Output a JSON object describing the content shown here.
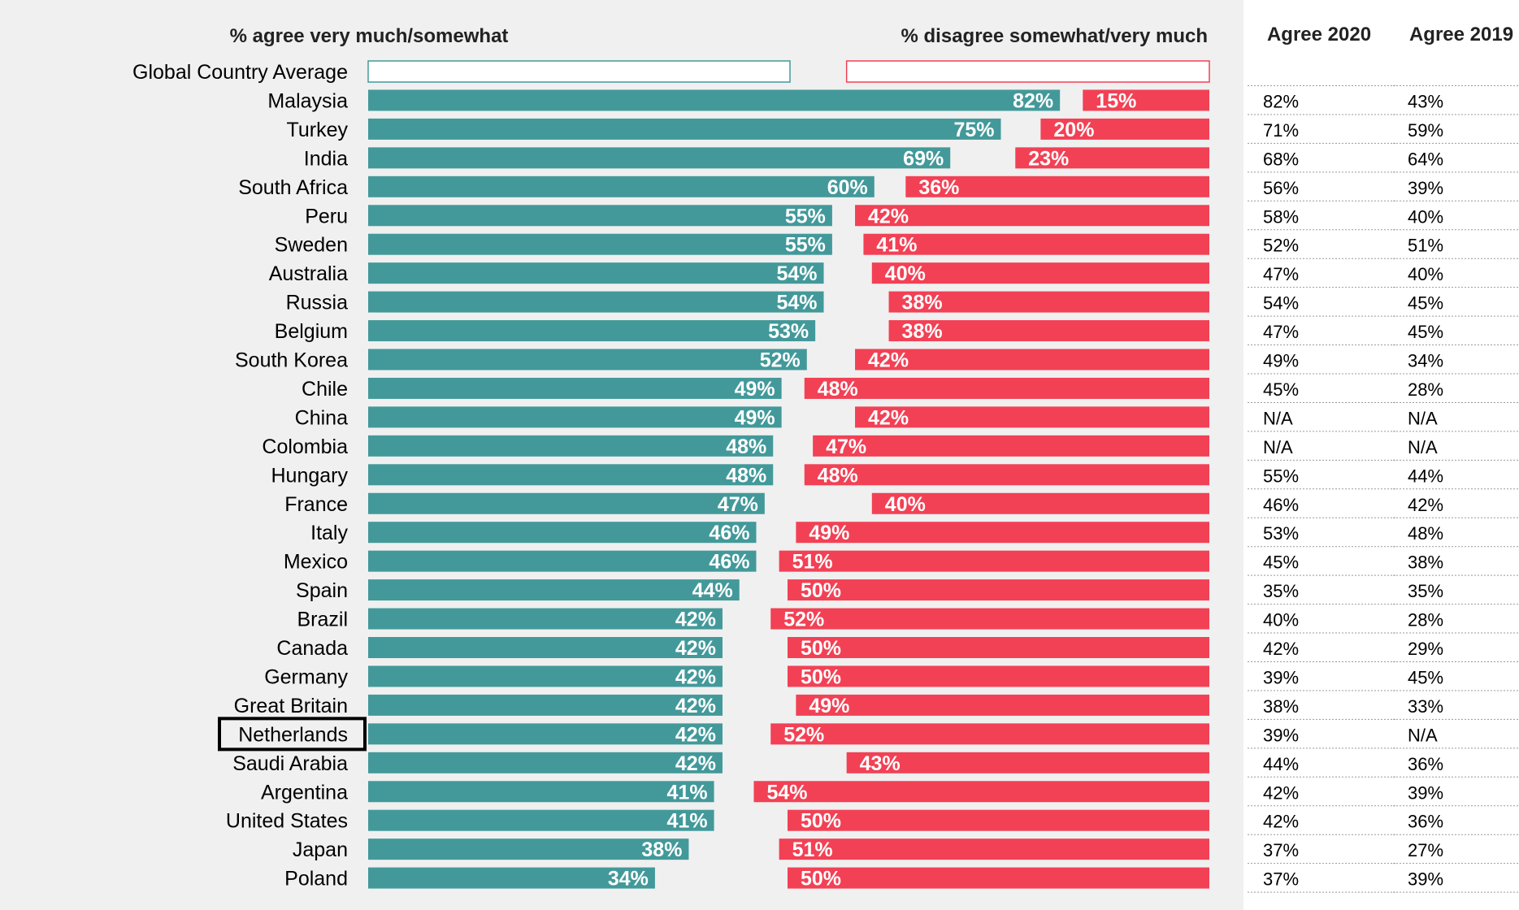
{
  "headers": {
    "agree": "% agree very much/somewhat",
    "disagree": "% disagree somewhat/very much",
    "col_2020": "Agree 2020",
    "col_2019": "Agree 2019"
  },
  "colors": {
    "agree": "#43999a",
    "disagree": "#f24155",
    "average_agree_text": "#43999a",
    "average_disagree_text": "#f24155",
    "panel_bg": "#f0f0f0"
  },
  "highlighted_country": "Netherlands",
  "chart_data": {
    "type": "bar",
    "orientation": "horizontal-diverging",
    "categories": [
      "Global Country Average",
      "Malaysia",
      "Turkey",
      "India",
      "South Africa",
      "Peru",
      "Sweden",
      "Australia",
      "Russia",
      "Belgium",
      "South Korea",
      "Chile",
      "China",
      "Colombia",
      "Hungary",
      "France",
      "Italy",
      "Mexico",
      "Spain",
      "Brazil",
      "Canada",
      "Germany",
      "Great Britain",
      "Netherlands",
      "Saudi Arabia",
      "Argentina",
      "United States",
      "Japan",
      "Poland"
    ],
    "series": [
      {
        "name": "% agree very much/somewhat",
        "values": [
          50,
          82,
          75,
          69,
          60,
          55,
          55,
          54,
          54,
          53,
          52,
          49,
          49,
          48,
          48,
          47,
          46,
          46,
          44,
          42,
          42,
          42,
          42,
          42,
          42,
          41,
          41,
          38,
          34
        ]
      },
      {
        "name": "% disagree somewhat/very much",
        "values": [
          43,
          15,
          20,
          23,
          36,
          42,
          41,
          40,
          38,
          38,
          42,
          48,
          42,
          47,
          48,
          40,
          49,
          51,
          50,
          52,
          50,
          50,
          49,
          52,
          43,
          54,
          50,
          51,
          50
        ]
      }
    ],
    "value_labels_agree": [
      "50%",
      "82%",
      "75%",
      "69%",
      "60%",
      "55%",
      "55%",
      "54%",
      "54%",
      "53%",
      "52%",
      "49%",
      "49%",
      "48%",
      "48%",
      "47%",
      "46%",
      "46%",
      "44%",
      "42%",
      "42%",
      "42%",
      "42%",
      "42%",
      "42%",
      "41%",
      "41%",
      "38%",
      "34%"
    ],
    "value_labels_disagree": [
      "43%",
      "15%",
      "20%",
      "23%",
      "36%",
      "42%",
      "41%",
      "40%",
      "38%",
      "38%",
      "42%",
      "48%",
      "42%",
      "47%",
      "48%",
      "40%",
      "49%",
      "51%",
      "50%",
      "52%",
      "50%",
      "50%",
      "49%",
      "52%",
      "43%",
      "54%",
      "50%",
      "51%",
      "50%"
    ],
    "agree_2020": [
      "",
      "82%",
      "71%",
      "68%",
      "56%",
      "58%",
      "52%",
      "47%",
      "54%",
      "47%",
      "49%",
      "45%",
      "N/A",
      "N/A",
      "55%",
      "46%",
      "53%",
      "45%",
      "35%",
      "40%",
      "42%",
      "39%",
      "38%",
      "39%",
      "44%",
      "42%",
      "42%",
      "37%",
      "37%"
    ],
    "agree_2019": [
      "",
      "43%",
      "59%",
      "64%",
      "39%",
      "40%",
      "51%",
      "40%",
      "45%",
      "45%",
      "34%",
      "28%",
      "N/A",
      "N/A",
      "44%",
      "42%",
      "48%",
      "38%",
      "35%",
      "28%",
      "29%",
      "45%",
      "33%",
      "N/A",
      "36%",
      "39%",
      "36%",
      "27%",
      "39%"
    ],
    "xlim": [
      0,
      100
    ]
  }
}
